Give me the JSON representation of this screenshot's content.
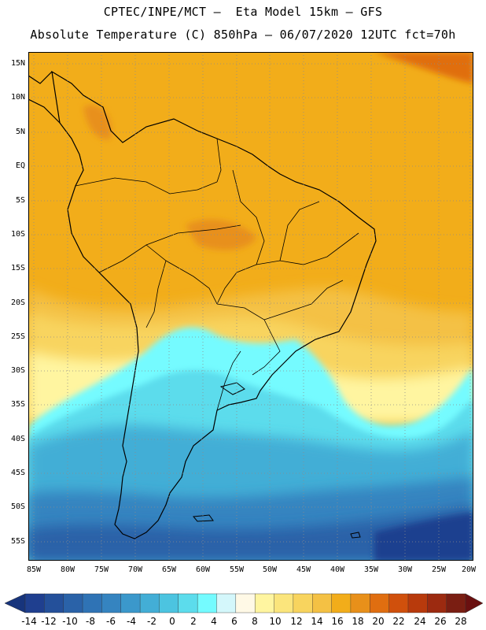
{
  "title_line1": "CPTEC/INPE/MCT —  Eta Model 15km — GFS",
  "title_line2": "Absolute Temperature (C) 850hPa — 06/07/2020 12UTC fct=70h",
  "lat_labels": [
    "15N",
    "10N",
    "5N",
    "EQ",
    "5S",
    "10S",
    "15S",
    "20S",
    "25S",
    "30S",
    "35S",
    "40S",
    "45S",
    "50S",
    "55S"
  ],
  "lon_labels": [
    "85W",
    "80W",
    "75W",
    "70W",
    "65W",
    "60W",
    "55W",
    "50W",
    "45W",
    "40W",
    "35W",
    "30W",
    "25W",
    "20W"
  ],
  "colorbar": {
    "labels": [
      "-14",
      "-12",
      "-10",
      "-8",
      "-6",
      "-4",
      "-2",
      "0",
      "2",
      "4",
      "6",
      "8",
      "10",
      "12",
      "14",
      "16",
      "18",
      "20",
      "22",
      "24",
      "26",
      "28"
    ],
    "colors": [
      "#1f3f8f",
      "#24509a",
      "#2a62a8",
      "#2f73b5",
      "#3584c0",
      "#3b98cb",
      "#43aed6",
      "#4cc4e0",
      "#5cdcec",
      "#74fbff",
      "#d4f7fb",
      "#fff9e6",
      "#fff5a0",
      "#fbe57c",
      "#f8d45e",
      "#f4c144",
      "#f2ad1a",
      "#e8901a",
      "#e06e10",
      "#d0500c",
      "#b83a0c",
      "#9c2a10",
      "#7a1e12"
    ],
    "under_color": "#17347c",
    "over_color": "#6a1010"
  }
}
